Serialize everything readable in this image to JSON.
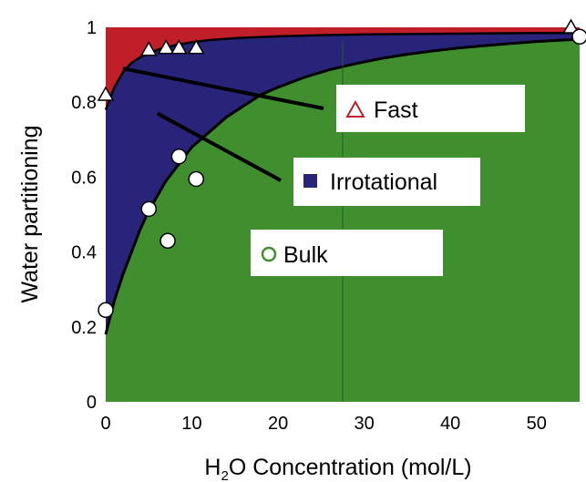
{
  "chart_data": {
    "type": "area",
    "title": "",
    "xlabel_main": "H",
    "xlabel_sub": "2",
    "xlabel_rest": "O Concentration (mol/L)",
    "ylabel": "Water partitioning",
    "xlim": [
      0,
      55
    ],
    "ylim": [
      0,
      1
    ],
    "x_ticks": [
      0,
      10,
      20,
      30,
      40,
      50
    ],
    "y_ticks": [
      0,
      0.2,
      0.4,
      0.6,
      0.8,
      1
    ],
    "x_tick_labels": [
      "0",
      "10",
      "20",
      "30",
      "40",
      "50"
    ],
    "y_tick_labels": [
      "0",
      "0.2",
      "0.4",
      "0.6",
      "0.8",
      "1"
    ],
    "grid": false,
    "colors": {
      "fast": "#c01f2a",
      "irrotational": "#27247a",
      "bulk": "#3f8f2e"
    },
    "curves": {
      "bulk_upper_boundary": {
        "x": [
          0,
          1,
          2,
          3,
          4,
          5,
          6,
          7,
          8,
          10,
          12,
          14,
          16,
          18,
          20,
          23,
          26,
          29,
          32,
          35,
          38,
          41,
          44,
          47,
          50,
          53,
          55
        ],
        "y": [
          0.18,
          0.27,
          0.34,
          0.4,
          0.46,
          0.51,
          0.55,
          0.59,
          0.62,
          0.68,
          0.72,
          0.76,
          0.79,
          0.82,
          0.84,
          0.866,
          0.887,
          0.903,
          0.917,
          0.928,
          0.937,
          0.945,
          0.951,
          0.957,
          0.962,
          0.966,
          0.968
        ]
      },
      "fast_lower_boundary": {
        "x": [
          0,
          1,
          2,
          3,
          4,
          5,
          6,
          8,
          10,
          12,
          15,
          20,
          25,
          30,
          35,
          40,
          45,
          50,
          55
        ],
        "y": [
          0.78,
          0.84,
          0.88,
          0.905,
          0.92,
          0.93,
          0.94,
          0.952,
          0.96,
          0.966,
          0.971,
          0.976,
          0.979,
          0.981,
          0.982,
          0.983,
          0.984,
          0.985,
          0.985
        ]
      }
    },
    "series": [
      {
        "name": "Fast",
        "marker": "triangle",
        "x": [
          0,
          5,
          7,
          8.5,
          10.5,
          54
        ],
        "y": [
          0.82,
          0.94,
          0.945,
          0.945,
          0.945,
          1.0
        ]
      },
      {
        "name": "Bulk",
        "marker": "circle",
        "x": [
          0,
          5,
          7.2,
          8.5,
          10.5,
          55
        ],
        "y": [
          0.245,
          0.515,
          0.43,
          0.655,
          0.595,
          0.975
        ]
      }
    ],
    "legend": [
      {
        "label": "Fast",
        "marker": "triangle",
        "color": "#c01f2a",
        "points_to": {
          "x": 2,
          "y": 0.89
        }
      },
      {
        "label": "Irrotational",
        "marker": "square",
        "color": "#27247a",
        "points_to": {
          "x": 6,
          "y": 0.77
        }
      },
      {
        "label": "Bulk",
        "marker": "circle",
        "color": "#3f8f2e"
      }
    ]
  }
}
